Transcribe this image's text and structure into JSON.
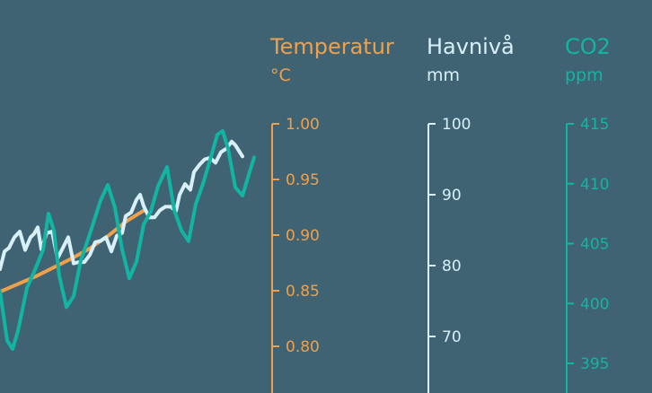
{
  "chart_data": {
    "type": "line",
    "colors": {
      "background": "#3f6373",
      "temperature": "#f0a04b",
      "sea_level": "#d8f0fa",
      "co2": "#12b5a1"
    },
    "axes": [
      {
        "id": "temp",
        "title": "Temperatur",
        "unit": "°C",
        "ticks": [
          "1.00",
          "0.95",
          "0.90",
          "0.85",
          "0.80"
        ],
        "range": [
          0.76,
          1.0
        ]
      },
      {
        "id": "sea",
        "title": "Havnivå",
        "unit": "mm",
        "ticks": [
          "100",
          "90",
          "80",
          "70"
        ],
        "range": [
          60,
          100
        ]
      },
      {
        "id": "co2",
        "title": "CO2",
        "unit": "ppm",
        "ticks": [
          "415",
          "410",
          "405",
          "400",
          "395"
        ],
        "range": [
          392,
          415
        ]
      }
    ],
    "series": [
      {
        "axis": "temp",
        "color": "#f0a04b",
        "values": [
          [
            0,
            0.849
          ],
          [
            20,
            0.856
          ],
          [
            40,
            0.863
          ],
          [
            60,
            0.871
          ],
          [
            80,
            0.879
          ],
          [
            100,
            0.888
          ],
          [
            120,
            0.899
          ],
          [
            140,
            0.912
          ],
          [
            160,
            0.922
          ]
        ]
      },
      {
        "axis": "sea",
        "color": "#d8f0fa",
        "values": [
          [
            0,
            79.5
          ],
          [
            5,
            82
          ],
          [
            10,
            82.5
          ],
          [
            16,
            84
          ],
          [
            22,
            84.8
          ],
          [
            28,
            82.2
          ],
          [
            34,
            84
          ],
          [
            38,
            84.5
          ],
          [
            42,
            85.4
          ],
          [
            46,
            82.3
          ],
          [
            52,
            84.6
          ],
          [
            58,
            84.8
          ],
          [
            64,
            81
          ],
          [
            70,
            82.5
          ],
          [
            76,
            84
          ],
          [
            82,
            80.3
          ],
          [
            88,
            80.5
          ],
          [
            94,
            80.5
          ],
          [
            100,
            81.5
          ],
          [
            106,
            83.3
          ],
          [
            112,
            83.5
          ],
          [
            118,
            84
          ],
          [
            124,
            82
          ],
          [
            130,
            84.2
          ],
          [
            136,
            84.6
          ],
          [
            140,
            87
          ],
          [
            146,
            87.5
          ],
          [
            152,
            89.3
          ],
          [
            156,
            90
          ],
          [
            160,
            88.4
          ],
          [
            166,
            86.8
          ],
          [
            172,
            86.8
          ],
          [
            178,
            87.8
          ],
          [
            184,
            88.3
          ],
          [
            190,
            88.3
          ],
          [
            196,
            87.7
          ],
          [
            200,
            90
          ],
          [
            206,
            91.5
          ],
          [
            212,
            90.7
          ],
          [
            216,
            93.2
          ],
          [
            222,
            94.2
          ],
          [
            228,
            95
          ],
          [
            234,
            95.2
          ],
          [
            240,
            94.5
          ],
          [
            246,
            96
          ],
          [
            252,
            96.5
          ],
          [
            258,
            97.5
          ],
          [
            262,
            97
          ],
          [
            266,
            96.2
          ],
          [
            270,
            95.4
          ]
        ]
      },
      {
        "axis": "co2",
        "color": "#12b5a1",
        "values": [
          [
            0,
            401
          ],
          [
            8,
            396.9
          ],
          [
            14,
            396.2
          ],
          [
            20,
            397.7
          ],
          [
            30,
            401.3
          ],
          [
            40,
            403
          ],
          [
            48,
            404.5
          ],
          [
            54,
            407.5
          ],
          [
            60,
            406.1
          ],
          [
            66,
            402.3
          ],
          [
            74,
            399.7
          ],
          [
            82,
            400.6
          ],
          [
            90,
            403.6
          ],
          [
            100,
            405.8
          ],
          [
            112,
            408.6
          ],
          [
            120,
            409.9
          ],
          [
            128,
            408
          ],
          [
            136,
            404.5
          ],
          [
            144,
            402.1
          ],
          [
            152,
            403.5
          ],
          [
            160,
            406.6
          ],
          [
            168,
            407.7
          ],
          [
            176,
            409.8
          ],
          [
            186,
            411.4
          ],
          [
            194,
            407.8
          ],
          [
            202,
            406.1
          ],
          [
            210,
            405.2
          ],
          [
            218,
            408.3
          ],
          [
            226,
            410
          ],
          [
            234,
            412
          ],
          [
            242,
            414.1
          ],
          [
            248,
            414.4
          ],
          [
            254,
            412.9
          ],
          [
            262,
            409.7
          ],
          [
            270,
            409
          ],
          [
            278,
            411
          ],
          [
            283,
            412.2
          ]
        ]
      }
    ]
  }
}
